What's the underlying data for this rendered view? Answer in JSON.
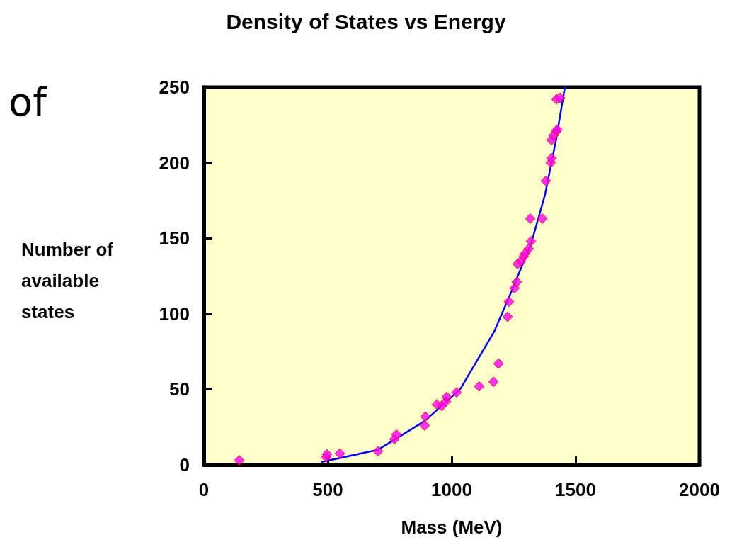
{
  "chart_data": {
    "type": "scatter",
    "title": "Density of States vs Energy",
    "xlabel": "Mass (MeV)",
    "ylabel": "Number of\navailable\nstates",
    "annotations": [
      "of"
    ],
    "xlim": [
      0,
      2000
    ],
    "xticks": [
      0,
      500,
      1000,
      1500,
      2000
    ],
    "ylim": [
      0,
      250
    ],
    "yticks": [
      0,
      50,
      100,
      150,
      200,
      250
    ],
    "grid": false,
    "series": [
      {
        "type": "line",
        "color": "#0000ff",
        "marker": "none",
        "line_style": "solid",
        "x": [
          477,
          703,
          891,
          1034,
          1171,
          1234,
          1320,
          1377,
          1420,
          1457
        ],
        "values": [
          2,
          10,
          29,
          50,
          88,
          112,
          146,
          179,
          214,
          250
        ]
      },
      {
        "color": "#ff00ff",
        "marker": "diamond",
        "x": [
          143,
          494,
          497,
          549,
          703,
          769,
          777,
          891,
          894,
          940,
          960,
          977,
          980,
          1020,
          1111,
          1169,
          1189,
          1226,
          1231,
          1254,
          1263,
          1266,
          1280,
          1291,
          1297,
          1311,
          1320,
          1317,
          1366,
          1380,
          1400,
          1403,
          1403,
          1411,
          1423,
          1426,
          1423,
          1437
        ],
        "values": [
          3,
          5,
          7,
          7.5,
          9,
          17,
          20,
          26,
          32,
          40,
          39,
          42,
          45,
          48,
          52,
          55,
          67,
          98,
          108,
          117,
          121,
          133,
          135,
          138,
          140,
          143,
          148,
          163,
          163,
          188,
          200,
          203,
          215,
          218,
          221,
          222,
          242,
          243
        ]
      }
    ]
  }
}
